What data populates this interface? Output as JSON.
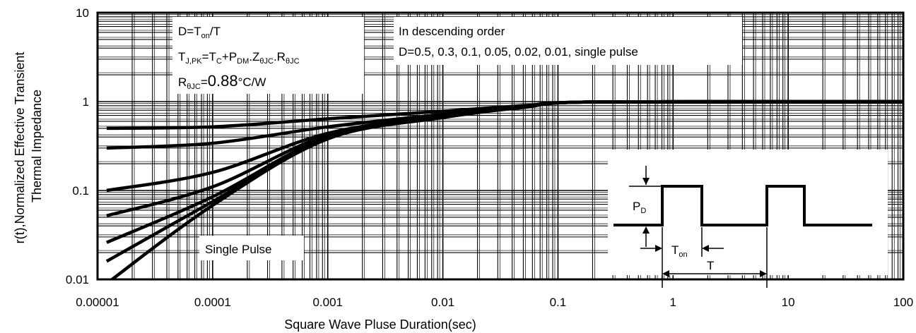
{
  "chart_data": {
    "type": "line",
    "x_scale": "log",
    "y_scale": "log",
    "xlim": [
      1e-05,
      100
    ],
    "ylim": [
      0.01,
      10
    ],
    "grid": true,
    "xlabel": "Square Wave Pluse Duration(sec)",
    "ylabel": [
      "r(t),Normalized Effective Transient",
      "Thermal Impedance"
    ],
    "x_ticks": [
      "0.00001",
      "0.0001",
      "0.001",
      "0.01",
      "0.1",
      "1",
      "10",
      "100"
    ],
    "y_ticks": [
      "0.01",
      "0.1",
      "1",
      "10"
    ],
    "series": [
      {
        "values": [
          [
            1.2e-05,
            0.5
          ],
          [
            0.0001,
            0.52
          ],
          [
            0.001,
            0.64
          ],
          [
            0.01,
            0.78
          ],
          [
            0.05,
            0.9
          ],
          [
            0.2,
            0.99
          ],
          [
            100,
            1.0
          ]
        ]
      },
      {
        "values": [
          [
            1.2e-05,
            0.3
          ],
          [
            0.0001,
            0.34
          ],
          [
            0.001,
            0.52
          ],
          [
            0.01,
            0.72
          ],
          [
            0.05,
            0.88
          ],
          [
            0.2,
            0.99
          ],
          [
            100,
            1.0
          ]
        ]
      },
      {
        "values": [
          [
            1.2e-05,
            0.1
          ],
          [
            0.0001,
            0.16
          ],
          [
            0.001,
            0.44
          ],
          [
            0.01,
            0.69
          ],
          [
            0.05,
            0.87
          ],
          [
            0.2,
            0.99
          ],
          [
            100,
            1.0
          ]
        ]
      },
      {
        "values": [
          [
            1.2e-05,
            0.052
          ],
          [
            0.0001,
            0.11
          ],
          [
            0.001,
            0.42
          ],
          [
            0.01,
            0.68
          ],
          [
            0.05,
            0.87
          ],
          [
            0.2,
            0.99
          ],
          [
            100,
            1.0
          ]
        ]
      },
      {
        "values": [
          [
            1.2e-05,
            0.026
          ],
          [
            0.0001,
            0.085
          ],
          [
            0.001,
            0.4
          ],
          [
            0.01,
            0.67
          ],
          [
            0.05,
            0.86
          ],
          [
            0.2,
            0.99
          ],
          [
            100,
            1.0
          ]
        ]
      },
      {
        "values": [
          [
            1.2e-05,
            0.016
          ],
          [
            0.0001,
            0.075
          ],
          [
            0.001,
            0.39
          ],
          [
            0.01,
            0.67
          ],
          [
            0.05,
            0.86
          ],
          [
            0.2,
            0.99
          ],
          [
            100,
            1.0
          ]
        ]
      },
      {
        "values": [
          [
            1.2e-05,
            0.009
          ],
          [
            0.0001,
            0.068
          ],
          [
            0.001,
            0.38
          ],
          [
            0.01,
            0.66
          ],
          [
            0.05,
            0.86
          ],
          [
            0.2,
            0.99
          ],
          [
            100,
            1.0
          ]
        ]
      }
    ],
    "annotations": {
      "formula_box": {
        "line1": {
          "main": "D=T",
          "sub": "on",
          "tail": "/T"
        },
        "line2": {
          "parts": [
            "T",
            "J,PK",
            "=T",
            "C",
            "+P",
            "DM",
            ".Z",
            "θJC",
            ".R",
            "θJC"
          ]
        },
        "line3": {
          "main": "R",
          "sub": "θJC",
          "eq": "=",
          "value": "0.88",
          "unit": "°C/W"
        }
      },
      "order_box": {
        "line1": "In descending order",
        "line2": "D=0.5, 0.3, 0.1, 0.05, 0.02, 0.01, single pulse"
      },
      "single_pulse_label": "Single Pulse",
      "inset": {
        "pd_label": {
          "main": "P",
          "sub": "D"
        },
        "ton_label": {
          "main": "T",
          "sub": "on"
        },
        "t_label": "T"
      }
    }
  }
}
